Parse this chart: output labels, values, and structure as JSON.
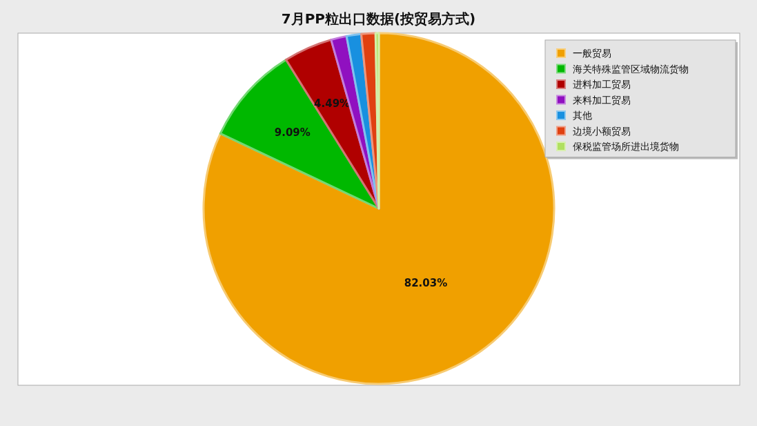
{
  "chart_data": {
    "type": "pie",
    "title": "7月PP粒出口数据(按贸易方式)",
    "categories": [
      "一般贸易",
      "海关特殊监管区域物流货物",
      "进料加工贸易",
      "来料加工贸易",
      "其他",
      "边境小额贸易",
      "保税监管场所进出境货物"
    ],
    "values": [
      82.03,
      9.09,
      4.49,
      1.44,
      1.35,
      1.3,
      0.3
    ],
    "colors": [
      "#f0a000",
      "#00b800",
      "#b00000",
      "#9010c0",
      "#1890e0",
      "#e04010",
      "#b0e060"
    ],
    "value_labels": [
      "82.03%",
      "9.09%",
      "4.49%",
      null,
      null,
      null,
      null
    ],
    "legend": "top right"
  }
}
